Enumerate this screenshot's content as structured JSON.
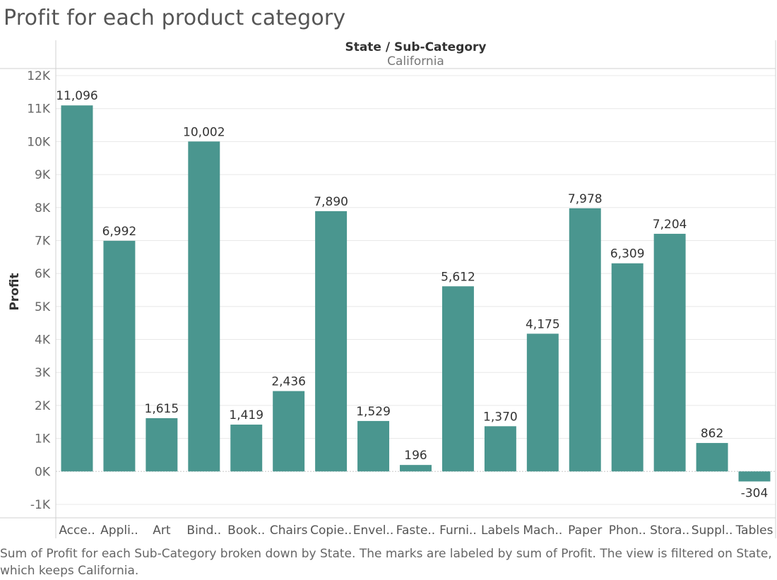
{
  "title": "Profit for each product category",
  "header": {
    "title": "State / Sub-Category",
    "value": "California"
  },
  "caption": "Sum of Profit for each Sub-Category broken down by State.  The marks are labeled by sum of Profit. The view is filtered on State, which keeps California.",
  "colors": {
    "bar": "#4a968f",
    "gridline": "#e8e8e8",
    "border": "#d0d0d0",
    "zero_line": "#c8c8c8"
  },
  "chart_data": {
    "type": "bar",
    "ylabel": "Profit",
    "ylim": [
      -1000,
      12000
    ],
    "yticks": [
      -1000,
      0,
      1000,
      2000,
      3000,
      4000,
      5000,
      6000,
      7000,
      8000,
      9000,
      10000,
      11000,
      12000
    ],
    "ytick_labels": [
      "-1K",
      "0K",
      "1K",
      "2K",
      "3K",
      "4K",
      "5K",
      "6K",
      "7K",
      "8K",
      "9K",
      "10K",
      "11K",
      "12K"
    ],
    "grid": true,
    "categories": [
      "Acce..",
      "Appli..",
      "Art",
      "Bind..",
      "Book..",
      "Chairs",
      "Copie..",
      "Envel..",
      "Faste..",
      "Furni..",
      "Labels",
      "Mach..",
      "Paper",
      "Phon..",
      "Stora..",
      "Suppl..",
      "Tables"
    ],
    "values": [
      11096,
      6992,
      1615,
      10002,
      1419,
      2436,
      7890,
      1529,
      196,
      5612,
      1370,
      4175,
      7978,
      6309,
      7204,
      862,
      -304
    ],
    "data_labels": [
      "11,096",
      "6,992",
      "1,615",
      "10,002",
      "1,419",
      "2,436",
      "7,890",
      "1,529",
      "196",
      "5,612",
      "1,370",
      "4,175",
      "7,978",
      "6,309",
      "7,204",
      "862",
      "-304"
    ]
  }
}
